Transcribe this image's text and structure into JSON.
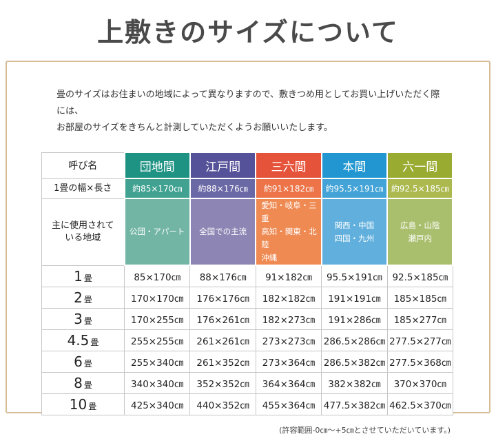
{
  "page": {
    "title": "上敷きのサイズについて",
    "intro_lines": [
      "畳のサイズはお住まいの地域によって異なりますので、敷きつめ用としてお買い上げいただく際には、",
      "お部屋のサイズをきちんと計測していただくようお願いいたします。"
    ],
    "footer_note": "(許容範囲-0㎝～+5㎝とさせていただいています。)",
    "colors": {
      "panel_border": "#d6bd96",
      "title_text": "#4a4a4a",
      "cell_border": "#c6c6c6"
    }
  },
  "table": {
    "corner_label": "呼び名",
    "width_row_label": "1畳の幅×長さ",
    "region_row_label_lines": [
      "主に使用されて",
      "いる地域"
    ],
    "columns": [
      {
        "name": "団地間",
        "header_color": "#1f9383",
        "width_color": "#41a292",
        "region_color": "#72b5a4",
        "one_mat_size": "約85×170㎝",
        "regions": [
          "公団・アパート"
        ],
        "region_align": "center"
      },
      {
        "name": "江戸間",
        "header_color": "#55529a",
        "width_color": "#6b68a6",
        "region_color": "#8d86b4",
        "one_mat_size": "約88×176㎝",
        "regions": [
          "全国での主流"
        ],
        "region_align": "center"
      },
      {
        "name": "三六間",
        "header_color": "#e5533a",
        "width_color": "#ec7448",
        "region_color": "#ef8a52",
        "one_mat_size": "約91×182㎝",
        "regions": [
          "愛知・岐阜・三重",
          "高知・関東・北陸",
          "沖縄"
        ],
        "region_align": "left"
      },
      {
        "name": "本間",
        "header_color": "#2196d0",
        "width_color": "#43a3d6",
        "region_color": "#60afdc",
        "one_mat_size": "約95.5×191㎝",
        "regions": [
          "関西・中国",
          "四国・九州"
        ],
        "region_align": "center"
      },
      {
        "name": "六一間",
        "header_color": "#9aab31",
        "width_color": "#acb94f",
        "region_color": "#aabf6e",
        "one_mat_size": "約92.5×185㎝",
        "regions": [
          "広島・山陰",
          "瀬戸内"
        ],
        "region_align": "center"
      }
    ],
    "size_rows": [
      {
        "label_num": "1",
        "label_unit": "畳",
        "values": [
          "85×170㎝",
          "88×176㎝",
          "91×182㎝",
          "95.5×191㎝",
          "92.5×185㎝"
        ]
      },
      {
        "label_num": "2",
        "label_unit": "畳",
        "values": [
          "170×170㎝",
          "176×176㎝",
          "182×182㎝",
          "191×191㎝",
          "185×185㎝"
        ]
      },
      {
        "label_num": "3",
        "label_unit": "畳",
        "values": [
          "170×255㎝",
          "176×261㎝",
          "182×273㎝",
          "191×286㎝",
          "185×277㎝"
        ]
      },
      {
        "label_num": "4.5",
        "label_unit": "畳",
        "values": [
          "255×255㎝",
          "261×261㎝",
          "273×273㎝",
          "286.5×286㎝",
          "277.5×277㎝"
        ]
      },
      {
        "label_num": "6",
        "label_unit": "畳",
        "values": [
          "255×340㎝",
          "261×352㎝",
          "273×364㎝",
          "286.5×382㎝",
          "277.5×368㎝"
        ]
      },
      {
        "label_num": "8",
        "label_unit": "畳",
        "values": [
          "340×340㎝",
          "352×352㎝",
          "364×364㎝",
          "382×382㎝",
          "370×370㎝"
        ]
      },
      {
        "label_num": "10",
        "label_unit": "畳",
        "values": [
          "425×340㎝",
          "440×352㎝",
          "455×364㎝",
          "477.5×382㎝",
          "462.5×370㎝"
        ]
      }
    ]
  }
}
